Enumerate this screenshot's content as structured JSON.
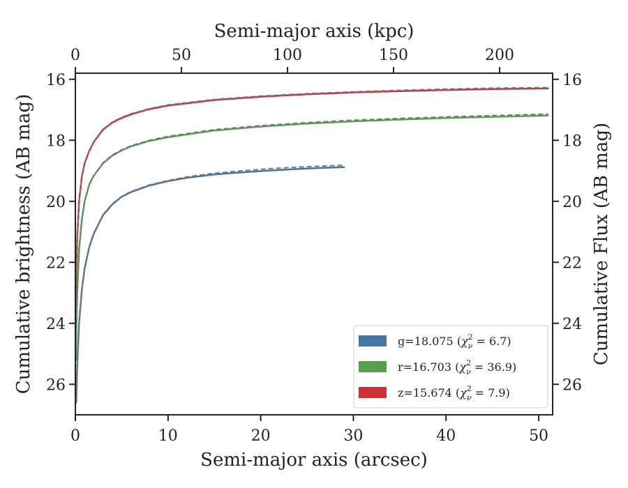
{
  "chart_data": {
    "type": "line",
    "xlabel": "Semi-major axis (arcsec)",
    "ylabel": "Cumulative brightness (AB mag)",
    "x2label": "Semi-major axis (kpc)",
    "y2label": "Cumulative Flux (AB mag)",
    "xlim": [
      0,
      51.5
    ],
    "ylim": [
      27.0,
      15.8
    ],
    "x2lim": [
      0,
      225
    ],
    "y_inverted": true,
    "xticks": [
      "0",
      "10",
      "20",
      "30",
      "40",
      "50"
    ],
    "x2ticks": [
      "0",
      "50",
      "100",
      "150",
      "200"
    ],
    "yticks": [
      "16",
      "18",
      "20",
      "22",
      "24",
      "26"
    ],
    "grid": false,
    "legend_position": "lower-right",
    "series": [
      {
        "name": "g=18.075 (χ²ν = 6.7)",
        "label_main": "g=18.075 (",
        "label_chi": "χ",
        "label_sup": "2",
        "label_sub": "ν",
        "label_tail": " = 6.7)",
        "color": "#4575a6",
        "x": [
          0.1,
          0.2,
          0.4,
          0.7,
          1.0,
          1.5,
          2.0,
          3.0,
          4.0,
          5.0,
          6.0,
          8.0,
          10.0,
          12.0,
          15.0,
          18.0,
          21.0,
          24.0,
          27.0,
          29.0
        ],
        "y": [
          26.6,
          25.4,
          24.0,
          22.9,
          22.2,
          21.5,
          21.05,
          20.45,
          20.1,
          19.85,
          19.7,
          19.48,
          19.34,
          19.23,
          19.12,
          19.05,
          18.99,
          18.94,
          18.9,
          18.88
        ],
        "y_model": [
          26.6,
          25.4,
          24.0,
          22.9,
          22.2,
          21.5,
          21.05,
          20.43,
          20.08,
          19.84,
          19.68,
          19.46,
          19.32,
          19.2,
          19.08,
          19.0,
          18.93,
          18.88,
          18.84,
          18.82
        ]
      },
      {
        "name": "r=16.703 (χ²ν = 36.9)",
        "label_main": "r=16.703 (",
        "label_chi": "χ",
        "label_sup": "2",
        "label_sub": "ν",
        "label_tail": " = 36.9)",
        "color": "#5a9e52",
        "x": [
          0.05,
          0.1,
          0.2,
          0.4,
          0.7,
          1.0,
          1.5,
          2.0,
          3.0,
          4.0,
          5.0,
          6.0,
          8.0,
          10.0,
          15.0,
          20.0,
          25.0,
          30.0,
          35.0,
          40.0,
          45.0,
          51.0
        ],
        "y": [
          25.2,
          24.3,
          23.0,
          21.6,
          20.6,
          20.0,
          19.45,
          19.15,
          18.75,
          18.5,
          18.33,
          18.2,
          18.02,
          17.9,
          17.68,
          17.55,
          17.45,
          17.38,
          17.32,
          17.27,
          17.23,
          17.19
        ],
        "y_model": [
          25.2,
          24.3,
          23.0,
          21.6,
          20.6,
          20.0,
          19.45,
          19.15,
          18.73,
          18.48,
          18.31,
          18.18,
          18.0,
          17.87,
          17.65,
          17.52,
          17.42,
          17.34,
          17.28,
          17.23,
          17.19,
          17.14
        ]
      },
      {
        "name": "z=15.674 (χ²ν = 7.9)",
        "label_main": "z=15.674 (",
        "label_chi": "χ",
        "label_sup": "2",
        "label_sub": "ν",
        "label_tail": " = 7.9)",
        "color": "#cf3034",
        "x": [
          0.05,
          0.1,
          0.2,
          0.4,
          0.7,
          1.0,
          1.5,
          2.0,
          3.0,
          4.0,
          5.0,
          6.0,
          8.0,
          10.0,
          15.0,
          20.0,
          25.0,
          30.0,
          35.0,
          40.0,
          45.0,
          51.0
        ],
        "y": [
          23.5,
          22.4,
          21.2,
          20.0,
          19.2,
          18.75,
          18.35,
          18.05,
          17.65,
          17.42,
          17.27,
          17.15,
          16.98,
          16.86,
          16.68,
          16.57,
          16.49,
          16.43,
          16.39,
          16.35,
          16.32,
          16.3
        ],
        "y_model": [
          23.5,
          22.4,
          21.2,
          20.0,
          19.2,
          18.75,
          18.35,
          18.03,
          17.63,
          17.4,
          17.25,
          17.13,
          16.96,
          16.84,
          16.66,
          16.55,
          16.47,
          16.41,
          16.36,
          16.32,
          16.29,
          16.27
        ]
      }
    ]
  }
}
